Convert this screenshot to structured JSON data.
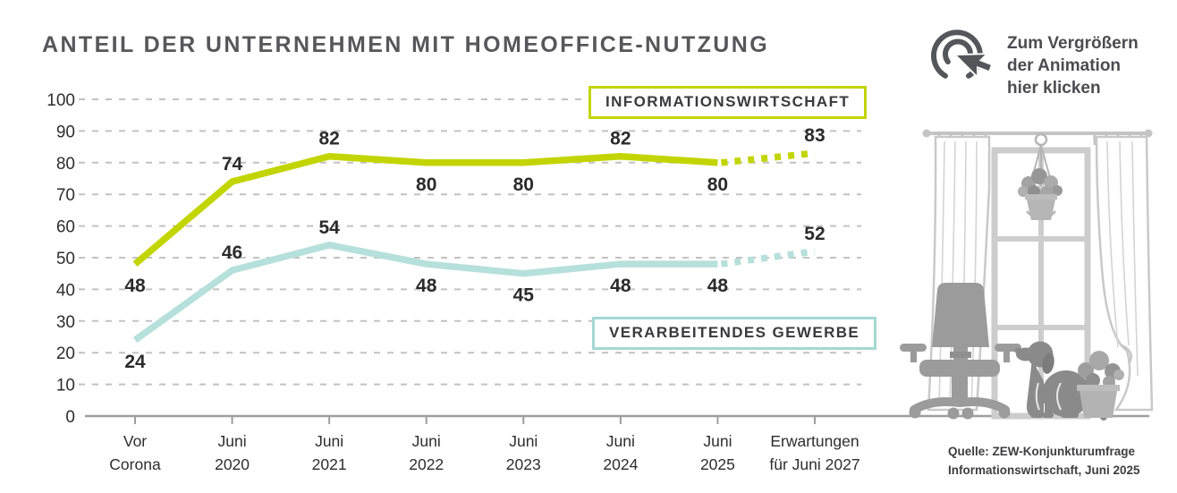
{
  "title": "ANTEIL DER UNTERNEHMEN MIT HOMEOFFICE-NUTZUNG",
  "click_hint": {
    "lines": [
      "Zum Vergrößern",
      "der Animation",
      "hier klicken"
    ]
  },
  "source": {
    "line1": "Quelle: ZEW-Konjunkturumfrage",
    "line2": "Informationswirtschaft, Juni 2025"
  },
  "colors": {
    "informationswirtschaft": "#c3d500",
    "verarbeitendes_gewerbe": "#b6e0db",
    "title_text": "#57575a",
    "grid": "#c2c2c2",
    "axis": "#9e9e9e",
    "data_label_text": "#2b2b2b"
  },
  "chart_data": {
    "type": "line",
    "categories": [
      [
        "Vor",
        "Corona"
      ],
      [
        "Juni",
        "2020"
      ],
      [
        "Juni",
        "2021"
      ],
      [
        "Juni",
        "2022"
      ],
      [
        "Juni",
        "2023"
      ],
      [
        "Juni",
        "2024"
      ],
      [
        "Juni",
        "2025"
      ],
      [
        "Erwartungen",
        "für Juni 2027"
      ]
    ],
    "series": [
      {
        "name": "INFORMATIONSWIRTSCHAFT",
        "color": "#c3d500",
        "values": [
          48,
          74,
          82,
          80,
          80,
          82,
          80,
          83
        ],
        "label_positions": [
          "below",
          "above",
          "above",
          "below",
          "below",
          "above",
          "below",
          "above"
        ],
        "forecast_from_index": 6
      },
      {
        "name": "VERARBEITENDES GEWERBE",
        "color": "#b6e0db",
        "values": [
          24,
          46,
          54,
          48,
          45,
          48,
          48,
          52
        ],
        "label_positions": [
          "below",
          "above",
          "above",
          "below",
          "below",
          "below",
          "below",
          "above"
        ],
        "forecast_from_index": 6
      }
    ],
    "ylim": [
      0,
      100
    ],
    "ytick_step": 10,
    "grid": "horizontal-dashed",
    "legend_position": "inside-boxed",
    "forecast_segment_style": "dashed"
  }
}
